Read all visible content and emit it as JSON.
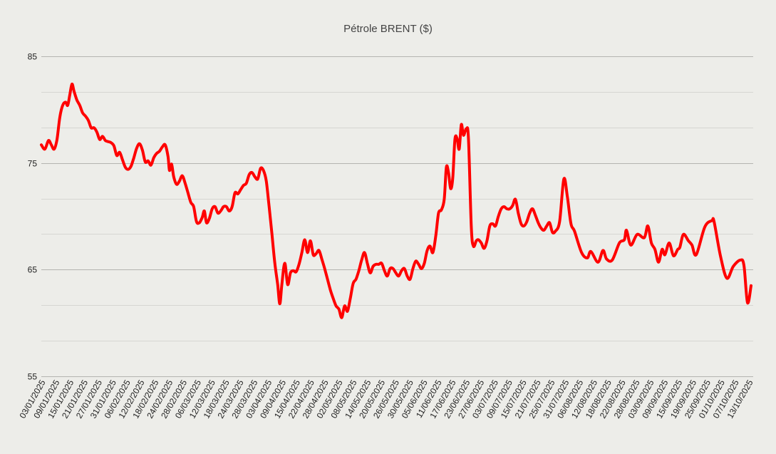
{
  "chart_data": {
    "type": "line",
    "title": "Pétrole BRENT ($)",
    "xlabel": "",
    "ylabel": "",
    "ylim": [
      55,
      85
    ],
    "y_ticks": [
      55,
      65,
      75,
      85
    ],
    "y_minor_gridlines": [
      58.33,
      61.67,
      68.33,
      71.67,
      78.33,
      81.67
    ],
    "grid": true,
    "legend": "none",
    "line_color": "#ff0000",
    "background_color": "#edede9",
    "categories": [
      "03/01/2025",
      "09/01/2025",
      "15/01/2025",
      "21/01/2025",
      "27/01/2025",
      "31/01/2025",
      "06/02/2025",
      "12/02/2025",
      "18/02/2025",
      "24/02/2025",
      "28/02/2025",
      "06/03/2025",
      "12/03/2025",
      "18/03/2025",
      "24/03/2025",
      "28/03/2025",
      "03/04/2025",
      "09/04/2025",
      "15/04/2025",
      "22/04/2025",
      "28/04/2025",
      "02/05/2025",
      "08/05/2025",
      "14/05/2025",
      "20/05/2025",
      "26/05/2025",
      "30/05/2025",
      "05/06/2025",
      "11/06/2025",
      "17/06/2025",
      "23/06/2025",
      "27/06/2025",
      "03/07/2025",
      "09/07/2025",
      "15/07/2025",
      "21/07/2025",
      "25/07/2025",
      "31/07/2025",
      "06/08/2025",
      "12/08/2025",
      "18/08/2025",
      "22/08/2025",
      "28/08/2025",
      "03/09/2025",
      "09/09/2025",
      "15/09/2025",
      "19/09/2025",
      "25/09/2025",
      "01/10/2025",
      "07/10/2025",
      "13/10/2025"
    ],
    "series": [
      {
        "name": "Pétrole BRENT ($)",
        "x_axis_units_0_to_1000": [
          0,
          5,
          10,
          14,
          18,
          22,
          26,
          30,
          34,
          37,
          40,
          43,
          46,
          50,
          54,
          58,
          62,
          66,
          70,
          74,
          78,
          82,
          86,
          90,
          94,
          98,
          102,
          106,
          110,
          114,
          118,
          122,
          126,
          130,
          134,
          138,
          142,
          146,
          150,
          154,
          158,
          162,
          166,
          170,
          174,
          178,
          180,
          183,
          186,
          190,
          194,
          198,
          202,
          206,
          210,
          214,
          218,
          222,
          226,
          229,
          232,
          236,
          240,
          244,
          248,
          252,
          256,
          260,
          264,
          268,
          272,
          276,
          280,
          284,
          288,
          292,
          296,
          300,
          304,
          308,
          312,
          316,
          320,
          324,
          328,
          332,
          335,
          338,
          342,
          346,
          350,
          354,
          358,
          362,
          366,
          370,
          374,
          378,
          382,
          386,
          390,
          394,
          398,
          402,
          406,
          410,
          414,
          418,
          422,
          426,
          430,
          434,
          438,
          442,
          446,
          450,
          454,
          458,
          462,
          466,
          470,
          474,
          478,
          482,
          486,
          490,
          494,
          498,
          502,
          506,
          510,
          514,
          518,
          522,
          526,
          530,
          534,
          538,
          542,
          546,
          550,
          554,
          558,
          562,
          566,
          569,
          572,
          575,
          578,
          581,
          584,
          587,
          590,
          593,
          597,
          600,
          604,
          607,
          611,
          614,
          618,
          622,
          626,
          630,
          634,
          638,
          642,
          646,
          650,
          654,
          658,
          662,
          666,
          670,
          674,
          678,
          682,
          686,
          690,
          694,
          698,
          702,
          706,
          710,
          714,
          718,
          722,
          728,
          734,
          739,
          744,
          749,
          759,
          767,
          772,
          782,
          789,
          794,
          802,
          812,
          819,
          822,
          828,
          837,
          847,
          852,
          857,
          862,
          867,
          872,
          876,
          882,
          888,
          894,
          897,
          902,
          909,
          914,
          920,
          932,
          942,
          945,
          954,
          963,
          972,
          982,
          987,
          992,
          997
        ],
        "values": [
          76.7,
          76.3,
          77.1,
          76.7,
          76.3,
          77.2,
          79.3,
          80.4,
          80.7,
          80.4,
          81.4,
          82.4,
          81.7,
          80.9,
          80.4,
          79.7,
          79.4,
          79.0,
          78.3,
          78.3,
          77.9,
          77.2,
          77.5,
          77.1,
          77.0,
          76.9,
          76.6,
          75.7,
          76.0,
          75.3,
          74.6,
          74.4,
          74.7,
          75.5,
          76.4,
          76.8,
          76.2,
          75.1,
          75.2,
          74.8,
          75.5,
          75.9,
          76.1,
          76.5,
          76.7,
          75.6,
          74.3,
          74.9,
          73.7,
          73.0,
          73.3,
          73.8,
          73.1,
          72.2,
          71.3,
          70.9,
          69.5,
          69.4,
          69.9,
          70.5,
          69.4,
          69.8,
          70.7,
          70.9,
          70.3,
          70.5,
          70.9,
          70.9,
          70.5,
          70.9,
          72.2,
          72.1,
          72.5,
          72.9,
          73.1,
          73.9,
          74.1,
          73.7,
          73.5,
          74.5,
          74.3,
          73.3,
          70.9,
          68.3,
          65.6,
          63.6,
          61.8,
          63.7,
          65.6,
          63.6,
          64.7,
          64.9,
          64.8,
          65.5,
          66.6,
          67.8,
          66.6,
          67.7,
          66.4,
          66.5,
          66.8,
          66.0,
          65.1,
          64.1,
          63.1,
          62.3,
          61.6,
          61.3,
          60.5,
          61.6,
          61.1,
          62.3,
          63.7,
          64.1,
          64.9,
          65.9,
          66.6,
          65.6,
          64.7,
          65.3,
          65.5,
          65.5,
          65.6,
          64.9,
          64.4,
          65.1,
          65.1,
          64.7,
          64.4,
          64.9,
          65.1,
          64.4,
          64.1,
          65.1,
          65.8,
          65.5,
          65.1,
          65.6,
          66.8,
          67.2,
          66.6,
          68.1,
          70.3,
          70.6,
          71.6,
          74.6,
          74.1,
          72.6,
          73.6,
          77.2,
          77.3,
          76.3,
          78.6,
          77.6,
          78.2,
          77.3,
          69.0,
          67.2,
          67.7,
          67.8,
          67.5,
          67.0,
          67.7,
          69.1,
          69.3,
          69.1,
          70.0,
          70.7,
          70.9,
          70.7,
          70.7,
          71.0,
          71.6,
          70.3,
          69.3,
          69.1,
          69.5,
          70.3,
          70.7,
          70.1,
          69.4,
          68.9,
          68.7,
          69.1,
          69.4,
          68.5,
          68.6,
          69.5,
          73.5,
          71.8,
          69.3,
          68.6,
          66.6,
          66.1,
          66.7,
          65.7,
          66.8,
          66.0,
          65.9,
          67.5,
          67.8,
          68.7,
          67.3,
          68.3,
          68.0,
          69.1,
          67.5,
          66.9,
          65.7,
          66.9,
          66.4,
          67.5,
          66.3,
          66.9,
          67.1,
          68.3,
          67.7,
          67.3,
          66.4,
          69.0,
          69.6,
          69.5,
          66.3,
          64.2,
          65.3,
          65.9,
          65.4,
          61.9,
          63.5
        ]
      }
    ]
  },
  "title": "Pétrole BRENT ($)"
}
